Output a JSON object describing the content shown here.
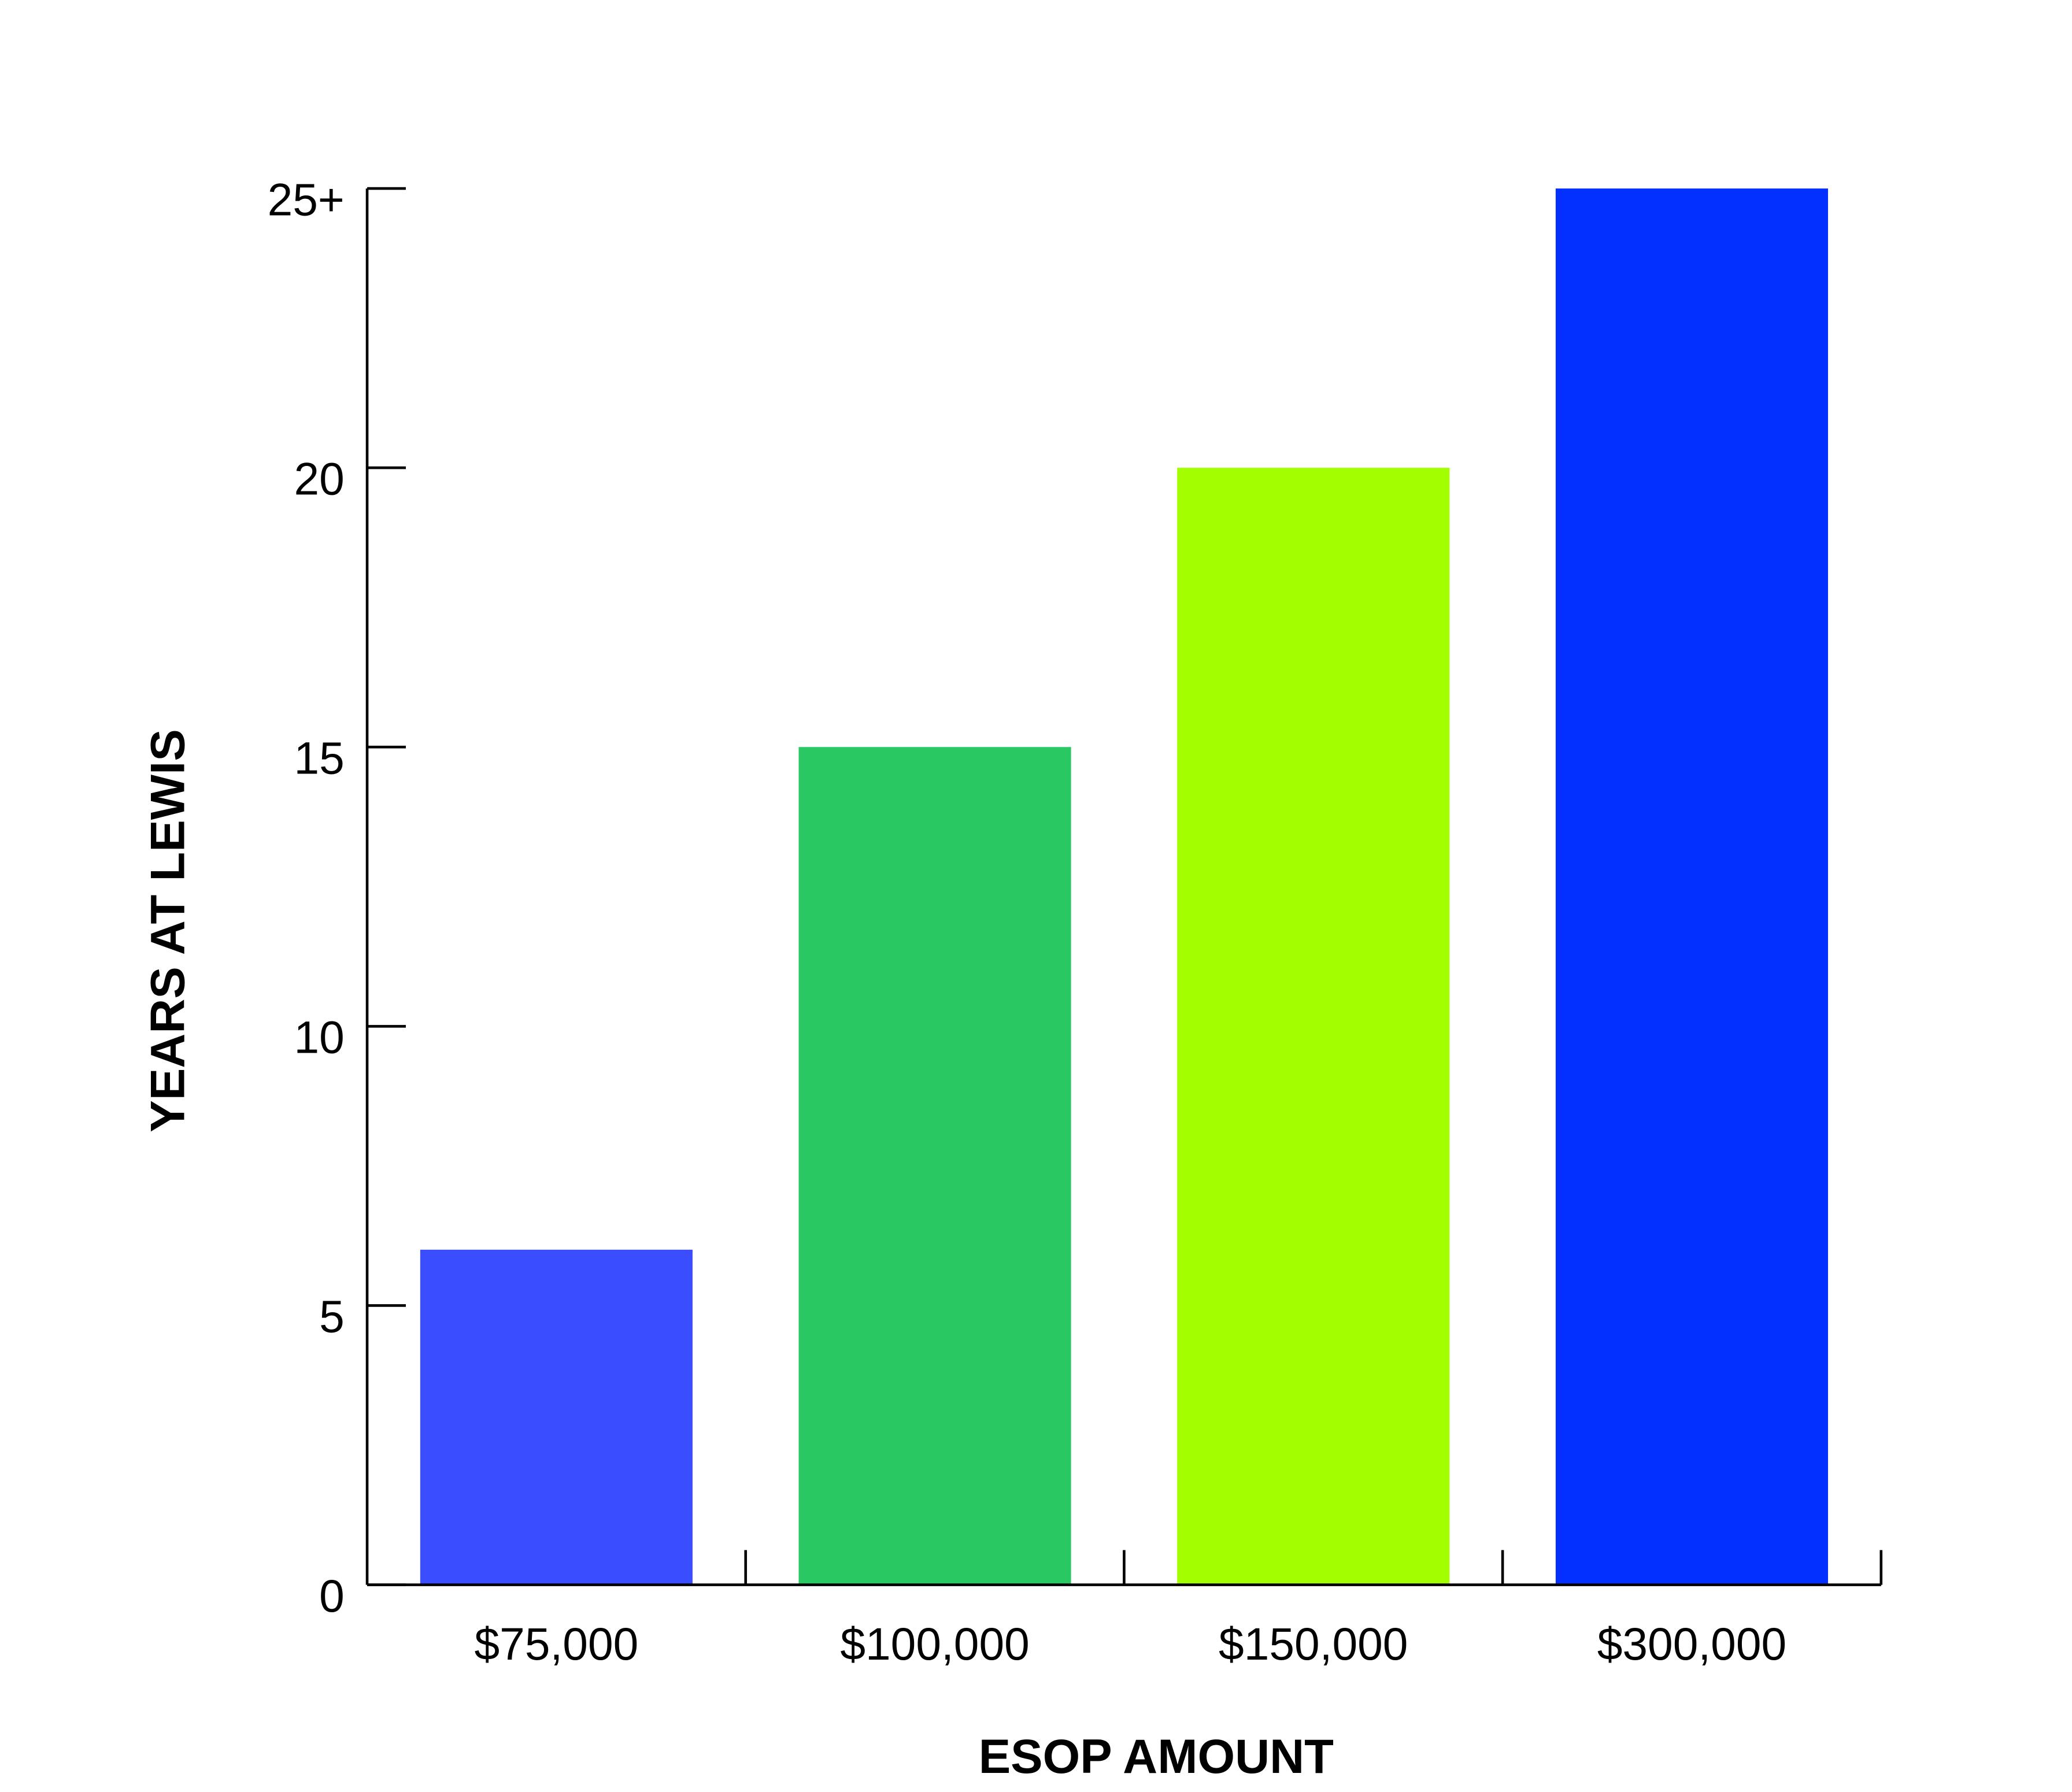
{
  "chart_data": {
    "type": "bar",
    "title": "",
    "xlabel": "ESOP AMOUNT",
    "ylabel": "YEARS AT LEWIS",
    "categories": [
      "$75,000",
      "$100,000",
      "$150,000",
      "$300,000"
    ],
    "values": [
      6,
      15,
      20,
      25
    ],
    "colors": [
      "#3a4dff",
      "#2ac862",
      "#a3ff00",
      "#0430ff"
    ],
    "ylim": [
      0,
      25
    ],
    "yticks": [
      0,
      5,
      10,
      15,
      20,
      25
    ],
    "ytick_labels": [
      "0",
      "5",
      "10",
      "15",
      "20",
      "25+"
    ],
    "grid": false,
    "legend": "none"
  }
}
